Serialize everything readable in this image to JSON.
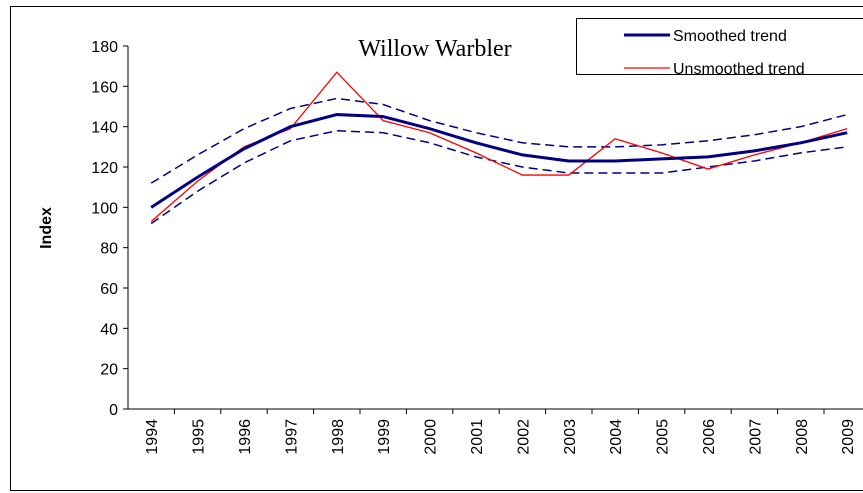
{
  "chart_data": {
    "type": "line",
    "title": "Willow Warbler",
    "y_label": "Index",
    "categories": [
      "1994",
      "1995",
      "1996",
      "1997",
      "1998",
      "1999",
      "2000",
      "2001",
      "2002",
      "2003",
      "2004",
      "2005",
      "2006",
      "2007",
      "2008",
      "2009"
    ],
    "series": [
      {
        "name": "Smoothed trend",
        "color": "#000080",
        "line_width": 3,
        "dashed": false,
        "values": [
          100,
          115,
          129,
          140,
          146,
          145,
          139,
          132,
          126,
          123,
          123,
          124,
          125,
          128,
          132,
          137
        ]
      },
      {
        "name": "Unsmoothed trend",
        "color": "#ff0000",
        "line_width": 1.3,
        "dashed": false,
        "values": [
          93,
          113,
          130,
          139,
          167,
          143,
          137,
          127,
          116,
          116,
          134,
          127,
          119,
          126,
          132,
          139
        ]
      },
      {
        "color": "#000080",
        "line_width": 1.5,
        "dashed": true,
        "values": [
          112,
          126,
          139,
          149,
          154,
          151,
          143,
          137,
          132,
          130,
          130,
          131,
          133,
          136,
          140,
          146
        ]
      },
      {
        "color": "#000080",
        "line_width": 1.5,
        "dashed": true,
        "values": [
          92,
          108,
          122,
          133,
          138,
          137,
          132,
          125,
          120,
          117,
          117,
          117,
          120,
          123,
          127,
          130
        ]
      }
    ],
    "ylim": [
      0,
      180
    ],
    "yticks": [
      0,
      20,
      40,
      60,
      80,
      100,
      120,
      140,
      160,
      180
    ],
    "grid": false,
    "legend": "top-right"
  }
}
